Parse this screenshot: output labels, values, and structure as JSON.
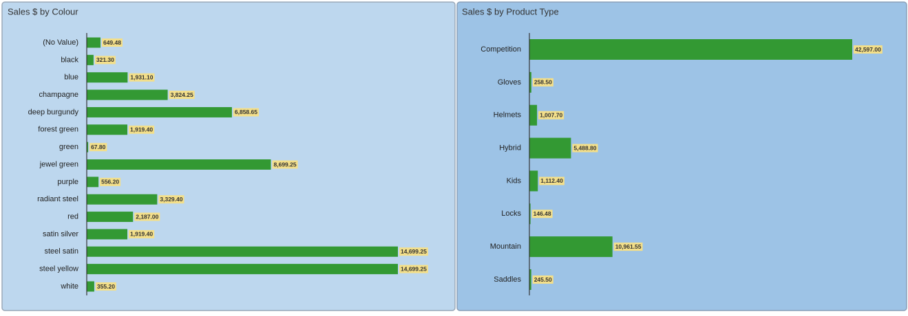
{
  "chart_data": [
    {
      "type": "bar",
      "orientation": "horizontal",
      "title": "Sales $ by Colour",
      "color": "#339933",
      "categories": [
        "(No Value)",
        "black",
        "blue",
        "champagne",
        "deep burgundy",
        "forest green",
        "green",
        "jewel green",
        "purple",
        "radiant steel",
        "red",
        "satin silver",
        "steel satin",
        "steel yellow",
        "white"
      ],
      "values": [
        649.48,
        321.3,
        1931.1,
        3824.25,
        6858.65,
        1919.4,
        67.8,
        8699.25,
        556.2,
        3329.4,
        2187,
        1919.4,
        14699.25,
        14699.25,
        355.2
      ],
      "value_labels": [
        "649.48",
        "321.30",
        "1,931.10",
        "3,824.25",
        "6,858.65",
        "1,919.40",
        "67.80",
        "8,699.25",
        "556.20",
        "3,329.40",
        "2,187.00",
        "1,919.40",
        "14,699.25",
        "14,699.25",
        "355.20"
      ]
    },
    {
      "type": "bar",
      "orientation": "horizontal",
      "title": "Sales $ by Product Type",
      "color": "#339933",
      "categories": [
        "Competition",
        "Gloves",
        "Helmets",
        "Hybrid",
        "Kids",
        "Locks",
        "Mountain",
        "Saddles"
      ],
      "values": [
        42597,
        258.5,
        1007.7,
        5488.8,
        1112.4,
        146.48,
        10961.55,
        245.5
      ],
      "value_labels": [
        "42,597.00",
        "258.50",
        "1,007.70",
        "5,488.80",
        "1,112.40",
        "146.48",
        "10,961.55",
        "245.50"
      ]
    }
  ]
}
